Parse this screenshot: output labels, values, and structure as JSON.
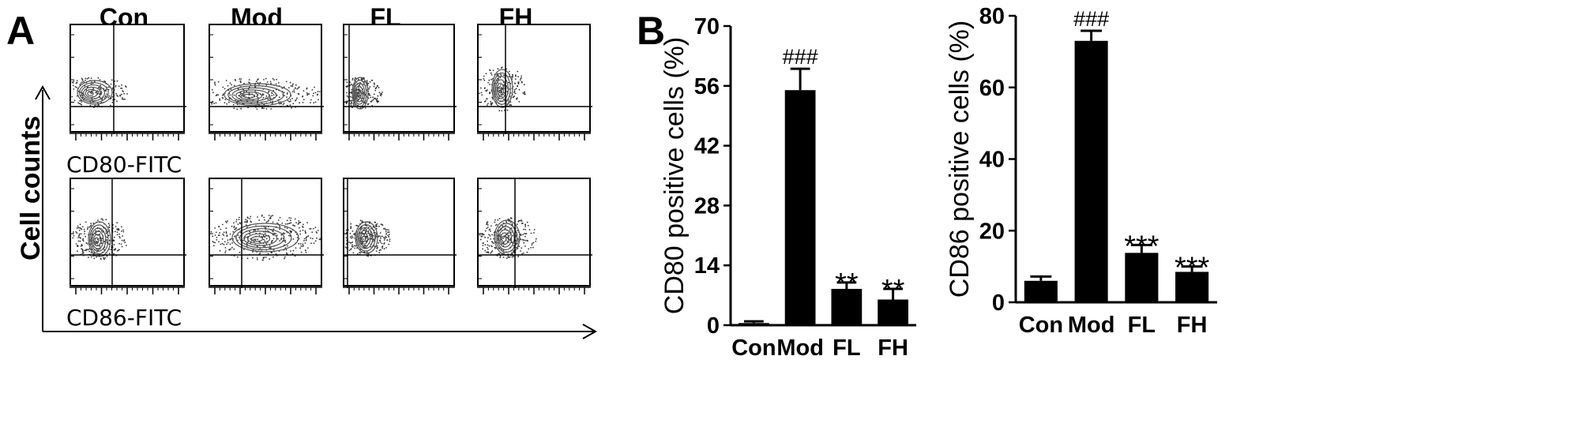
{
  "panel_a": {
    "letter": "A",
    "columns": [
      "Con",
      "Mod",
      "FL",
      "FH"
    ],
    "row_labels": [
      "CD80-FITC",
      "CD86-FITC"
    ],
    "y_axis_label": "Cell counts"
  },
  "panel_b": {
    "letter": "B"
  },
  "chart_data": [
    {
      "type": "bar",
      "categories": [
        "Con",
        "Mod",
        "FL",
        "FH"
      ],
      "values": [
        0.5,
        55,
        8.5,
        6
      ],
      "errors": [
        0.4,
        5,
        1.5,
        2.5
      ],
      "annotations": [
        "",
        "###",
        "**",
        "**"
      ],
      "ylabel": "CD80 positive cells (%)",
      "ylim": [
        0,
        70
      ],
      "yticks": [
        0,
        14,
        28,
        42,
        56,
        70
      ]
    },
    {
      "type": "bar",
      "categories": [
        "Con",
        "Mod",
        "FL",
        "FH"
      ],
      "values": [
        6,
        73,
        13.8,
        8.5
      ],
      "errors": [
        1.2,
        2.8,
        2.2,
        1.5
      ],
      "annotations": [
        "",
        "###",
        "***",
        "***"
      ],
      "ylabel": "CD86 positive cells (%)",
      "ylim": [
        0,
        80
      ],
      "yticks": [
        0,
        20,
        40,
        60,
        80
      ]
    }
  ]
}
